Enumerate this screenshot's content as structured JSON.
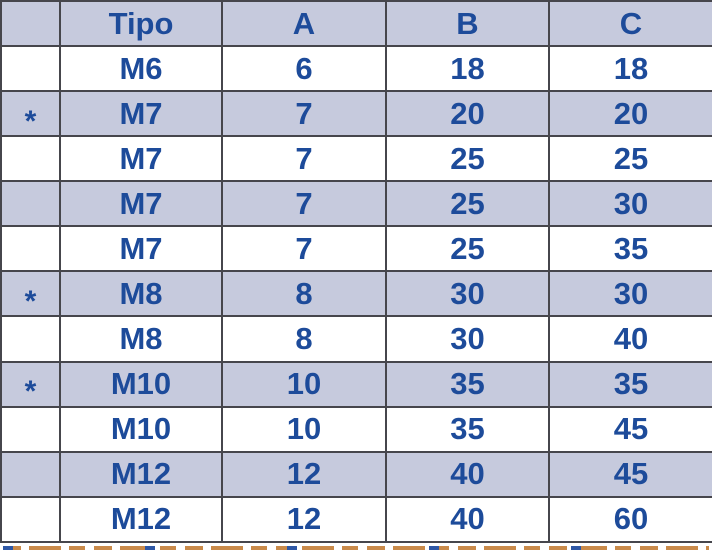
{
  "table": {
    "columns": [
      {
        "key": "flag",
        "label": ""
      },
      {
        "key": "tipo",
        "label": "Tipo"
      },
      {
        "key": "a",
        "label": "A"
      },
      {
        "key": "b",
        "label": "B"
      },
      {
        "key": "c",
        "label": "C"
      }
    ],
    "rows": [
      {
        "flag": "",
        "tipo": "M6",
        "a": "6",
        "b": "18",
        "c": "18",
        "shaded": false
      },
      {
        "flag": "*",
        "tipo": "M7",
        "a": "7",
        "b": "20",
        "c": "20",
        "shaded": true
      },
      {
        "flag": "",
        "tipo": "M7",
        "a": "7",
        "b": "25",
        "c": "25",
        "shaded": false
      },
      {
        "flag": "",
        "tipo": "M7",
        "a": "7",
        "b": "25",
        "c": "30",
        "shaded": true
      },
      {
        "flag": "",
        "tipo": "M7",
        "a": "7",
        "b": "25",
        "c": "35",
        "shaded": false
      },
      {
        "flag": "*",
        "tipo": "M8",
        "a": "8",
        "b": "30",
        "c": "30",
        "shaded": true
      },
      {
        "flag": "",
        "tipo": "M8",
        "a": "8",
        "b": "30",
        "c": "40",
        "shaded": false
      },
      {
        "flag": "*",
        "tipo": "M10",
        "a": "10",
        "b": "35",
        "c": "35",
        "shaded": true
      },
      {
        "flag": "",
        "tipo": "M10",
        "a": "10",
        "b": "35",
        "c": "45",
        "shaded": false
      },
      {
        "flag": "",
        "tipo": "M12",
        "a": "12",
        "b": "40",
        "c": "45",
        "shaded": true
      },
      {
        "flag": "",
        "tipo": "M12",
        "a": "12",
        "b": "40",
        "c": "60",
        "shaded": false
      }
    ]
  },
  "colors": {
    "text_blue": "#1d4b9a",
    "row_shade": "#c6cadd",
    "grid_border": "#46464c",
    "strip_orange": "#c98a4a"
  }
}
